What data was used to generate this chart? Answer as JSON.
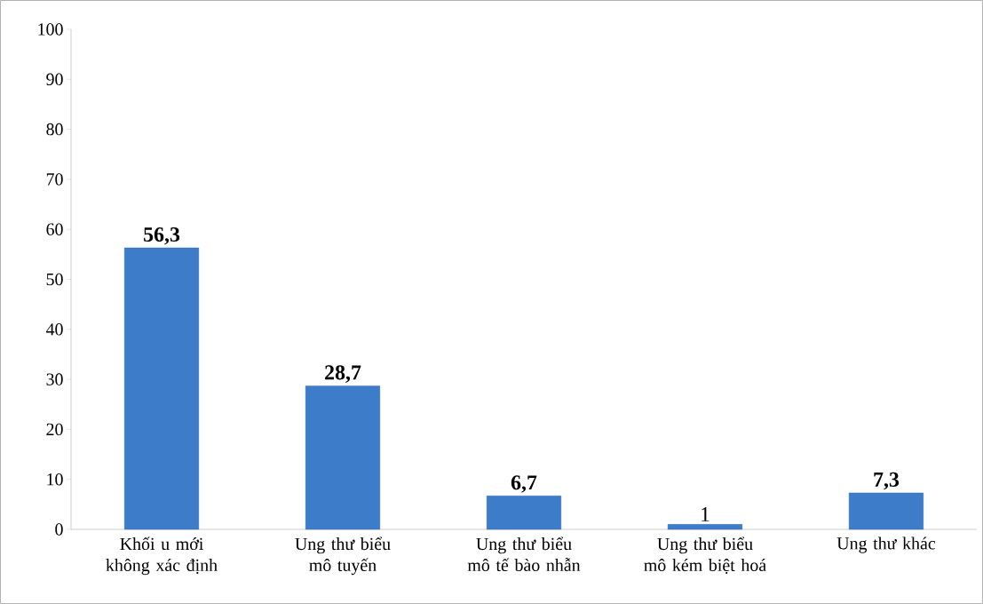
{
  "chart_data": {
    "type": "bar",
    "categories": [
      "Khối u mới không xác định",
      "Ung thư biểu mô tuyến",
      "Ung thư biểu mô tế bào nhẫn",
      "Ung thư biểu mô kém biệt hoá",
      "Ung thư khác"
    ],
    "values": [
      56.3,
      28.7,
      6.7,
      1,
      7.3
    ],
    "value_labels": [
      "**56,3**",
      "**28,7**",
      "**6,7**",
      "1",
      "**7,3**"
    ],
    "color": "#3d7cc9",
    "ylim": [
      0,
      100
    ],
    "yticks": [
      0,
      10,
      20,
      30,
      40,
      50,
      60,
      70,
      80,
      90,
      100
    ],
    "grid": false
  }
}
